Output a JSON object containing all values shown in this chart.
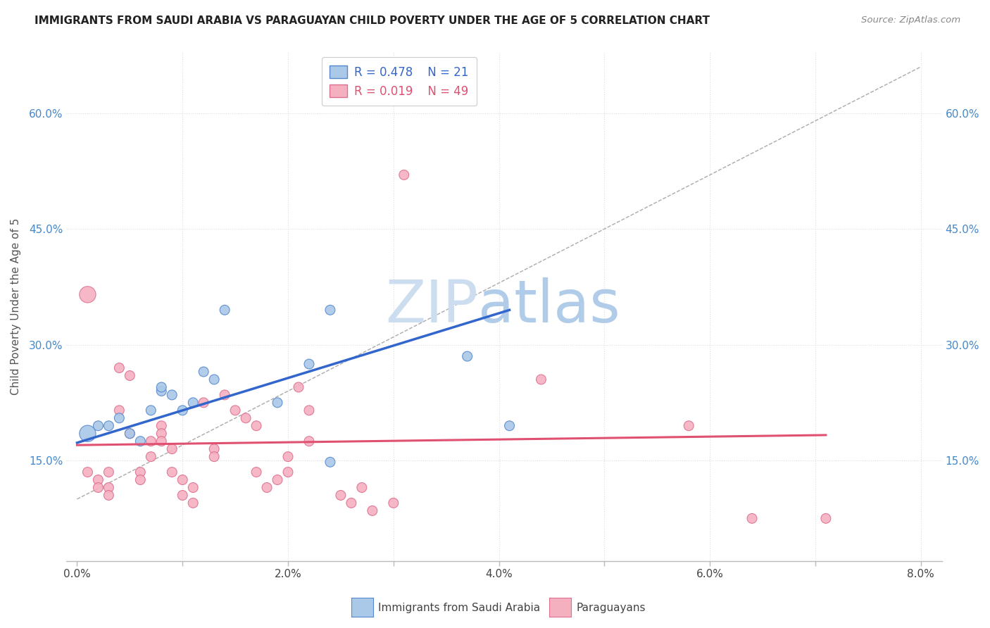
{
  "title": "IMMIGRANTS FROM SAUDI ARABIA VS PARAGUAYAN CHILD POVERTY UNDER THE AGE OF 5 CORRELATION CHART",
  "source": "Source: ZipAtlas.com",
  "xlabel": "",
  "ylabel": "Child Poverty Under the Age of 5",
  "xlim": [
    -0.001,
    0.082
  ],
  "ylim": [
    0.02,
    0.68
  ],
  "xticks": [
    0.0,
    0.01,
    0.02,
    0.03,
    0.04,
    0.05,
    0.06,
    0.07,
    0.08
  ],
  "xticklabels": [
    "0.0%",
    "",
    "2.0%",
    "",
    "4.0%",
    "",
    "6.0%",
    "",
    "8.0%"
  ],
  "xlabels_show": [
    0.0,
    0.02,
    0.04,
    0.06,
    0.08
  ],
  "xlabels_text": [
    "0.0%",
    "2.0%",
    "4.0%",
    "6.0%",
    "8.0%"
  ],
  "yticks_left": [
    0.15,
    0.3,
    0.45,
    0.6
  ],
  "yticklabels_left": [
    "15.0%",
    "30.0%",
    "45.0%",
    "60.0%"
  ],
  "yticks_right": [
    0.15,
    0.3,
    0.45,
    0.6
  ],
  "yticklabels_right": [
    "15.0%",
    "30.0%",
    "45.0%",
    "60.0%"
  ],
  "blue_R": 0.478,
  "blue_N": 21,
  "pink_R": 0.019,
  "pink_N": 49,
  "legend_label_blue": "Immigrants from Saudi Arabia",
  "legend_label_pink": "Paraguayans",
  "blue_color": "#aac8e8",
  "pink_color": "#f5b0c0",
  "blue_edge_color": "#5588cc",
  "pink_edge_color": "#dd7090",
  "blue_line_color": "#3366cc",
  "pink_line_color": "#e05070",
  "diag_line_color": "#aaaaaa",
  "grid_color": "#dddddd",
  "blue_scatter_x": [
    0.001,
    0.002,
    0.003,
    0.004,
    0.005,
    0.006,
    0.007,
    0.008,
    0.008,
    0.009,
    0.01,
    0.011,
    0.012,
    0.013,
    0.014,
    0.019,
    0.022,
    0.024,
    0.024,
    0.037,
    0.041
  ],
  "blue_scatter_y": [
    0.185,
    0.195,
    0.195,
    0.205,
    0.185,
    0.175,
    0.215,
    0.24,
    0.245,
    0.235,
    0.215,
    0.225,
    0.265,
    0.255,
    0.345,
    0.225,
    0.275,
    0.345,
    0.148,
    0.285,
    0.195
  ],
  "blue_scatter_size": [
    280,
    100,
    100,
    100,
    100,
    100,
    100,
    100,
    100,
    100,
    100,
    100,
    100,
    100,
    100,
    100,
    100,
    100,
    100,
    100,
    100
  ],
  "pink_scatter_x": [
    0.001,
    0.001,
    0.002,
    0.002,
    0.003,
    0.003,
    0.003,
    0.004,
    0.004,
    0.005,
    0.005,
    0.006,
    0.006,
    0.007,
    0.007,
    0.008,
    0.008,
    0.008,
    0.009,
    0.009,
    0.01,
    0.01,
    0.011,
    0.011,
    0.012,
    0.013,
    0.013,
    0.014,
    0.015,
    0.016,
    0.017,
    0.017,
    0.018,
    0.019,
    0.02,
    0.02,
    0.021,
    0.022,
    0.022,
    0.025,
    0.026,
    0.027,
    0.028,
    0.03,
    0.031,
    0.044,
    0.058,
    0.064,
    0.071
  ],
  "pink_scatter_y": [
    0.365,
    0.135,
    0.125,
    0.115,
    0.135,
    0.115,
    0.105,
    0.215,
    0.27,
    0.185,
    0.26,
    0.135,
    0.125,
    0.175,
    0.155,
    0.195,
    0.185,
    0.175,
    0.165,
    0.135,
    0.125,
    0.105,
    0.115,
    0.095,
    0.225,
    0.165,
    0.155,
    0.235,
    0.215,
    0.205,
    0.135,
    0.195,
    0.115,
    0.125,
    0.155,
    0.135,
    0.245,
    0.215,
    0.175,
    0.105,
    0.095,
    0.115,
    0.085,
    0.095,
    0.52,
    0.255,
    0.195,
    0.075,
    0.075
  ],
  "pink_scatter_size": [
    280,
    100,
    100,
    100,
    100,
    100,
    100,
    100,
    100,
    100,
    100,
    100,
    100,
    100,
    100,
    100,
    100,
    100,
    100,
    100,
    100,
    100,
    100,
    100,
    100,
    100,
    100,
    100,
    100,
    100,
    100,
    100,
    100,
    100,
    100,
    100,
    100,
    100,
    100,
    100,
    100,
    100,
    100,
    100,
    100,
    100,
    100,
    100,
    100
  ],
  "blue_line_x": [
    0.0,
    0.041
  ],
  "blue_line_y": [
    0.173,
    0.345
  ],
  "pink_line_x": [
    0.0,
    0.071
  ],
  "pink_line_y": [
    0.17,
    0.183
  ],
  "diag_line_x": [
    0.0,
    0.08
  ],
  "diag_line_y": [
    0.1,
    0.66
  ],
  "watermark_zip": "ZIP",
  "watermark_atlas": "atlas",
  "watermark_color_zip": "#ccddf0",
  "watermark_color_atlas": "#b0cce8",
  "watermark_fontsize": 60
}
